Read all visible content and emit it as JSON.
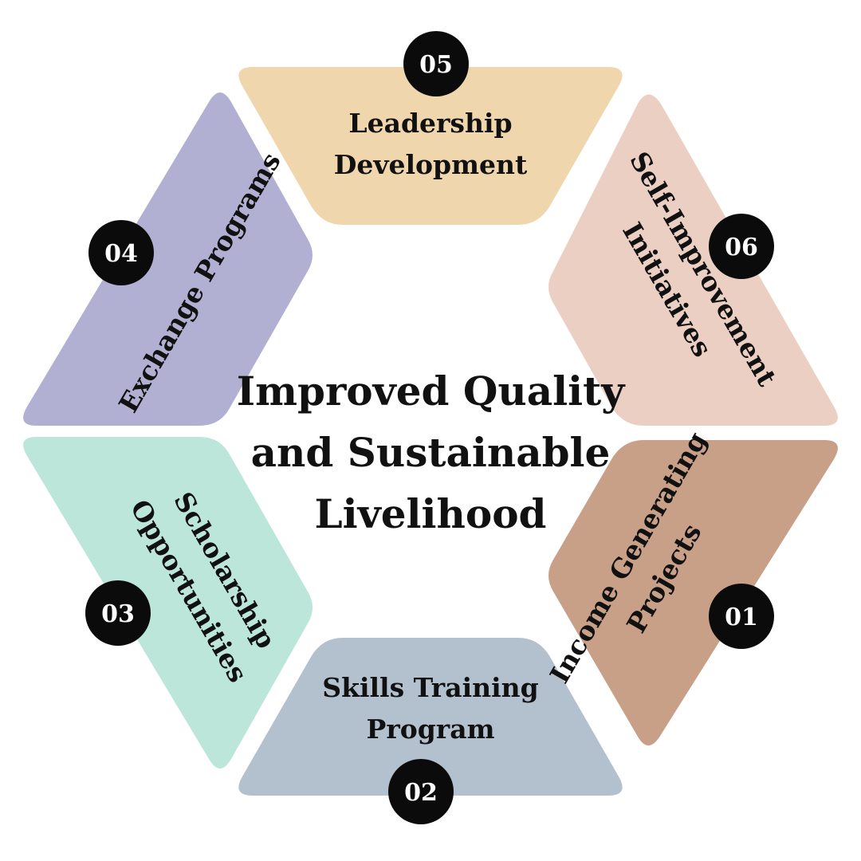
{
  "center": {
    "lines": [
      "Improved Quality",
      "and Sustainable",
      "Livelihood"
    ]
  },
  "segments": [
    {
      "number": "01",
      "lines": [
        "Income Generating",
        "Projects"
      ],
      "color": "#c89f87"
    },
    {
      "number": "02",
      "lines": [
        "Skills Training",
        "Program"
      ],
      "color": "#b3c0ce"
    },
    {
      "number": "03",
      "lines": [
        "Scholarship",
        "Opportunities"
      ],
      "color": "#bde6da"
    },
    {
      "number": "04",
      "lines": [
        "Exchange Programs"
      ],
      "color": "#b1b0d2"
    },
    {
      "number": "05",
      "lines": [
        "Leadership",
        "Development"
      ],
      "color": "#f0d6ad"
    },
    {
      "number": "06",
      "lines": [
        "Self-Improvement",
        "Initiatives"
      ],
      "color": "#ebcfc3"
    }
  ]
}
